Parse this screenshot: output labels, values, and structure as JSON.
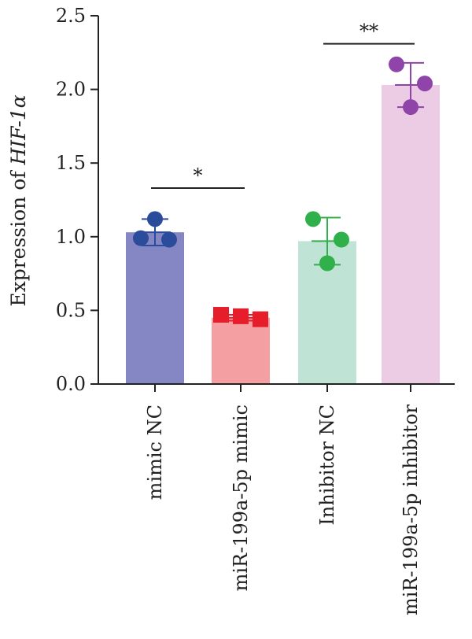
{
  "chart_data": {
    "type": "bar",
    "title": "",
    "ylabel_prefix": "Expression of ",
    "ylabel_gene": "HIF-1α",
    "ylim": [
      0,
      2.5
    ],
    "yticks": [
      "0.0",
      "0.5",
      "1.0",
      "1.5",
      "2.0",
      "2.5"
    ],
    "ytick_values": [
      0,
      0.5,
      1.0,
      1.5,
      2.0,
      2.5
    ],
    "categories": [
      "mimic NC",
      "miR-199a-5p mimic",
      "Inhibitor NC",
      "miR-199a-5p inhibitor"
    ],
    "values": [
      1.03,
      0.45,
      0.97,
      2.03
    ],
    "errors": [
      0.09,
      0.02,
      0.16,
      0.15
    ],
    "points": [
      [
        1.12,
        0.99,
        0.98
      ],
      [
        0.47,
        0.46,
        0.44
      ],
      [
        1.12,
        0.98,
        0.82
      ],
      [
        2.17,
        2.04,
        1.88
      ]
    ],
    "marker_shapes": [
      "circle",
      "square",
      "circle",
      "circle"
    ],
    "bar_colors": [
      "#8487c3",
      "#f4a0a3",
      "#bfe4d5",
      "#ebcce4"
    ],
    "point_colors": [
      "#2b4b9b",
      "#e61e2c",
      "#2fb04a",
      "#8e44a8"
    ],
    "significance": [
      {
        "label": "*",
        "from": 0,
        "to": 1,
        "y": 1.33
      },
      {
        "label": "**",
        "from": 2,
        "to": 3,
        "y": 2.31
      }
    ]
  }
}
